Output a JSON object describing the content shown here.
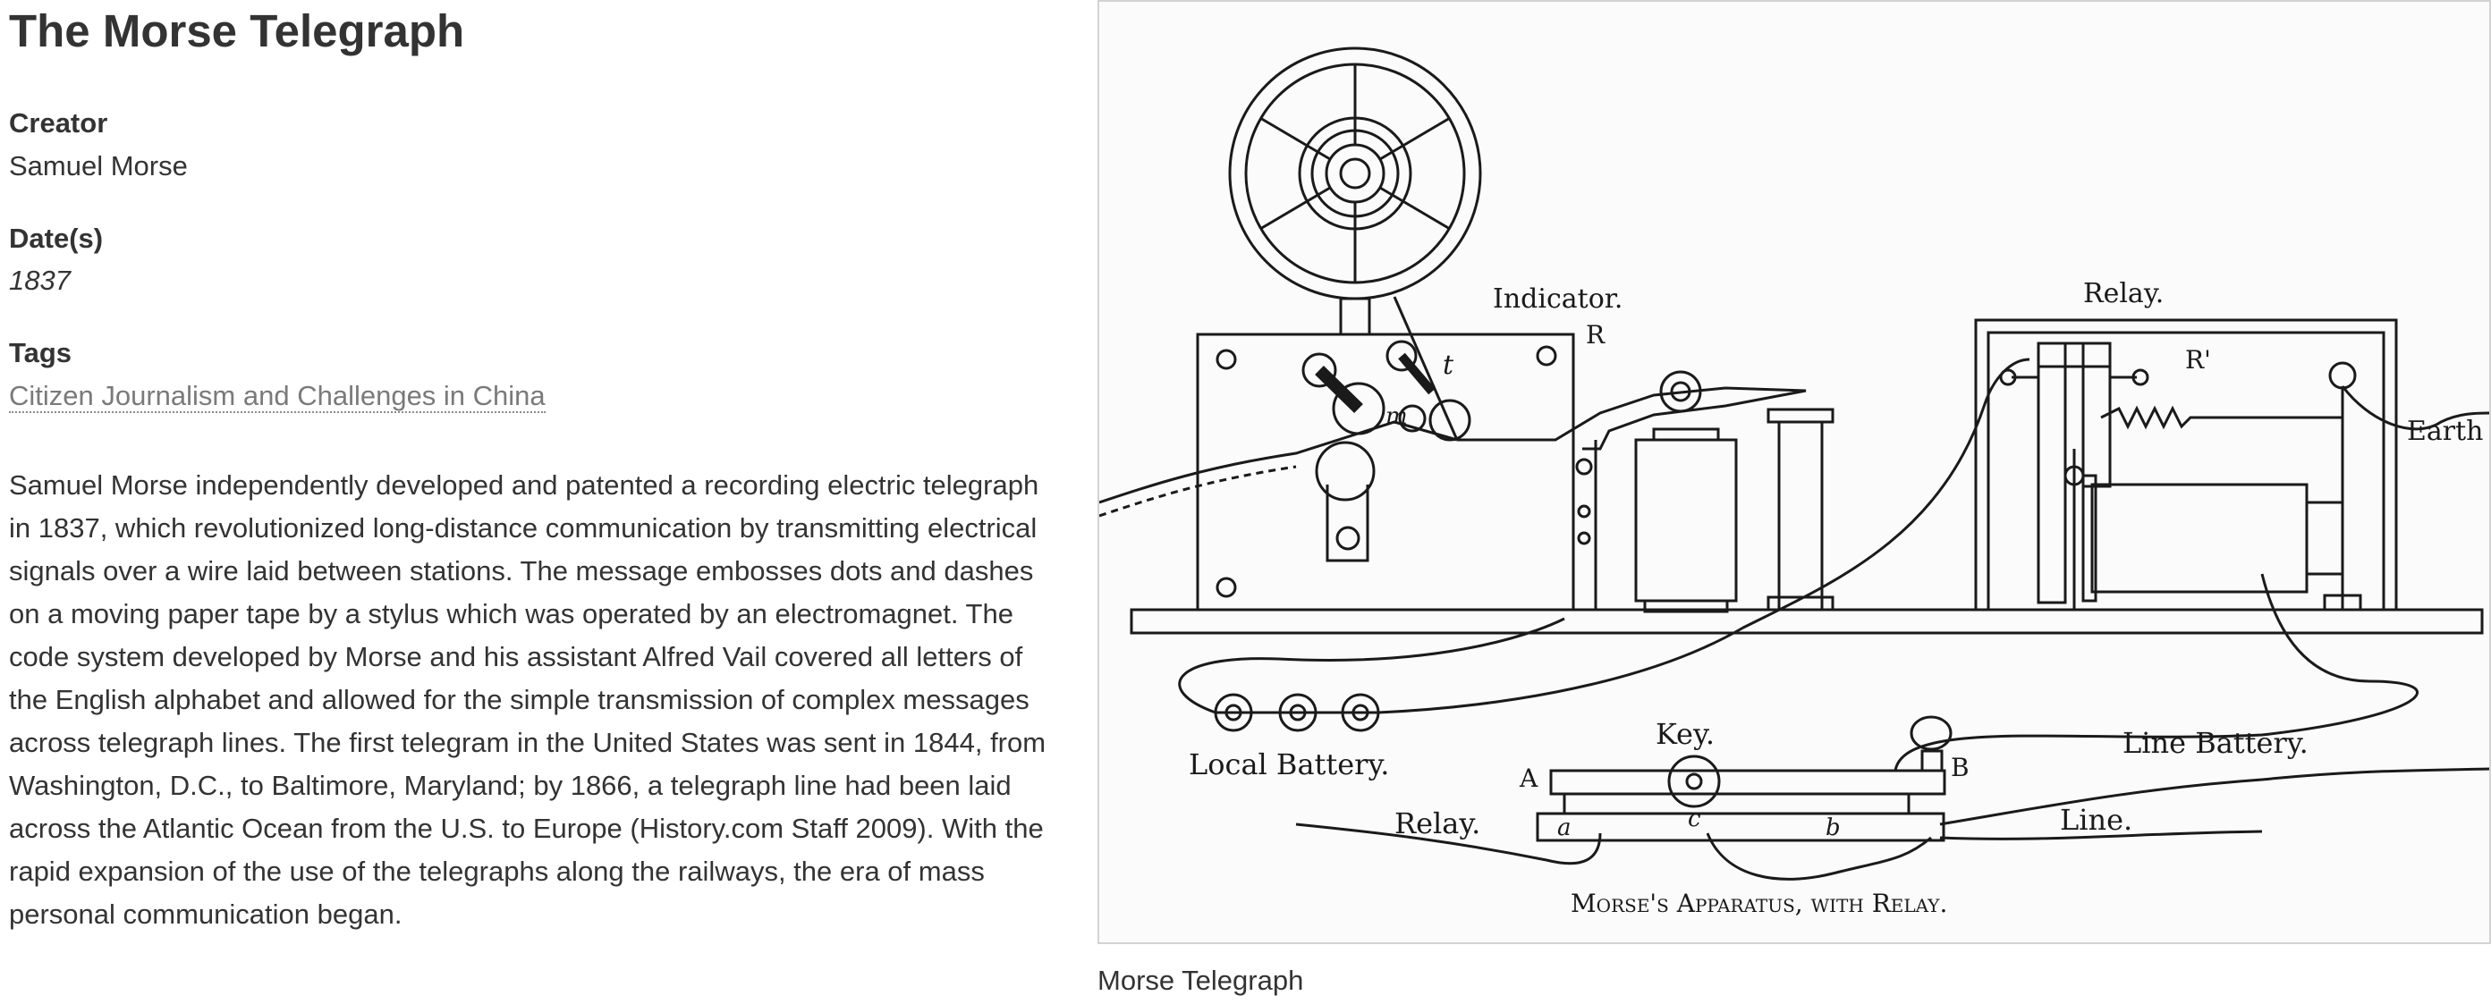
{
  "item": {
    "title": "The Morse Telegraph",
    "creator_label": "Creator",
    "creator": "Samuel Morse",
    "dates_label": "Date(s)",
    "date": "1837",
    "tags_label": "Tags",
    "tags": [
      "Citizen Journalism and Challenges in China"
    ],
    "description": "Samuel Morse independently developed and patented a recording electric telegraph in 1837, which revolutionized long-distance communication by transmitting electrical signals over a wire laid between stations. The message embosses dots and dashes on a moving paper tape by a stylus which was operated by an electromagnet. The code system developed by Morse and his assistant Alfred Vail covered all letters of the English alphabet and allowed for the simple transmission of complex messages across telegraph lines. The first telegram in the United States was sent in 1844, from Washington, D.C., to Baltimore, Maryland; by 1866, a telegraph line had been laid across the Atlantic Ocean from the U.S. to Europe (History.com Staff 2009). With the rapid expansion of the use of the telegraphs along the railways, the era of mass personal communication began."
  },
  "figure": {
    "caption": "Morse Telegraph",
    "illustration_labels": {
      "indicator": "Indicator.",
      "relay_top": "Relay.",
      "r": "R",
      "r_prime": "R'",
      "t": "t",
      "m": "m",
      "earth": "Earth",
      "key": "Key.",
      "local_battery": "Local Battery.",
      "line_battery": "Line Battery.",
      "a_upper": "A",
      "b_upper": "B",
      "relay_bottom": "Relay.",
      "line": "Line.",
      "a_lower": "a",
      "c_lower": "c",
      "b_lower": "b",
      "apparatus_caption": "Morse's Apparatus, with Relay."
    }
  }
}
